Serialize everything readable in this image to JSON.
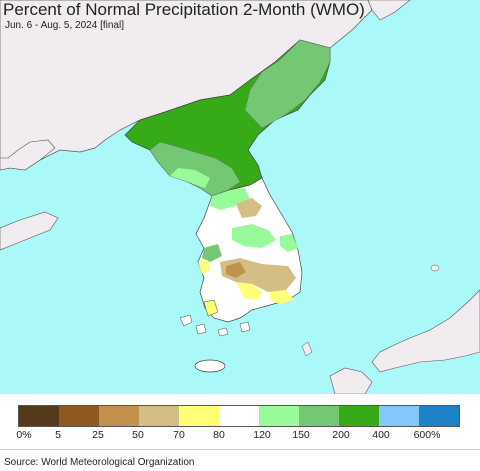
{
  "header": {
    "title": "Percent of Normal Precipitation 2-Month (WMO)",
    "subtitle": "Jun. 6 - Aug. 5, 2024 [final]"
  },
  "legend": {
    "colors": [
      "#54391a",
      "#8f5a22",
      "#c2914c",
      "#d3bf86",
      "#ffff78",
      "#ffffff",
      "#98fa98",
      "#75c873",
      "#37aa18",
      "#82c8fa",
      "#1e82c8"
    ],
    "labels": [
      "0%",
      "5",
      "25",
      "50",
      "70",
      "80",
      "120",
      "150",
      "200",
      "400",
      "600%"
    ]
  },
  "footer": {
    "source": "Source: World Meteorological Organization"
  },
  "map": {
    "ocean_color": "#aaf8f8",
    "foreign_land_color": "#f0ecf0",
    "border_color": "#555555"
  }
}
